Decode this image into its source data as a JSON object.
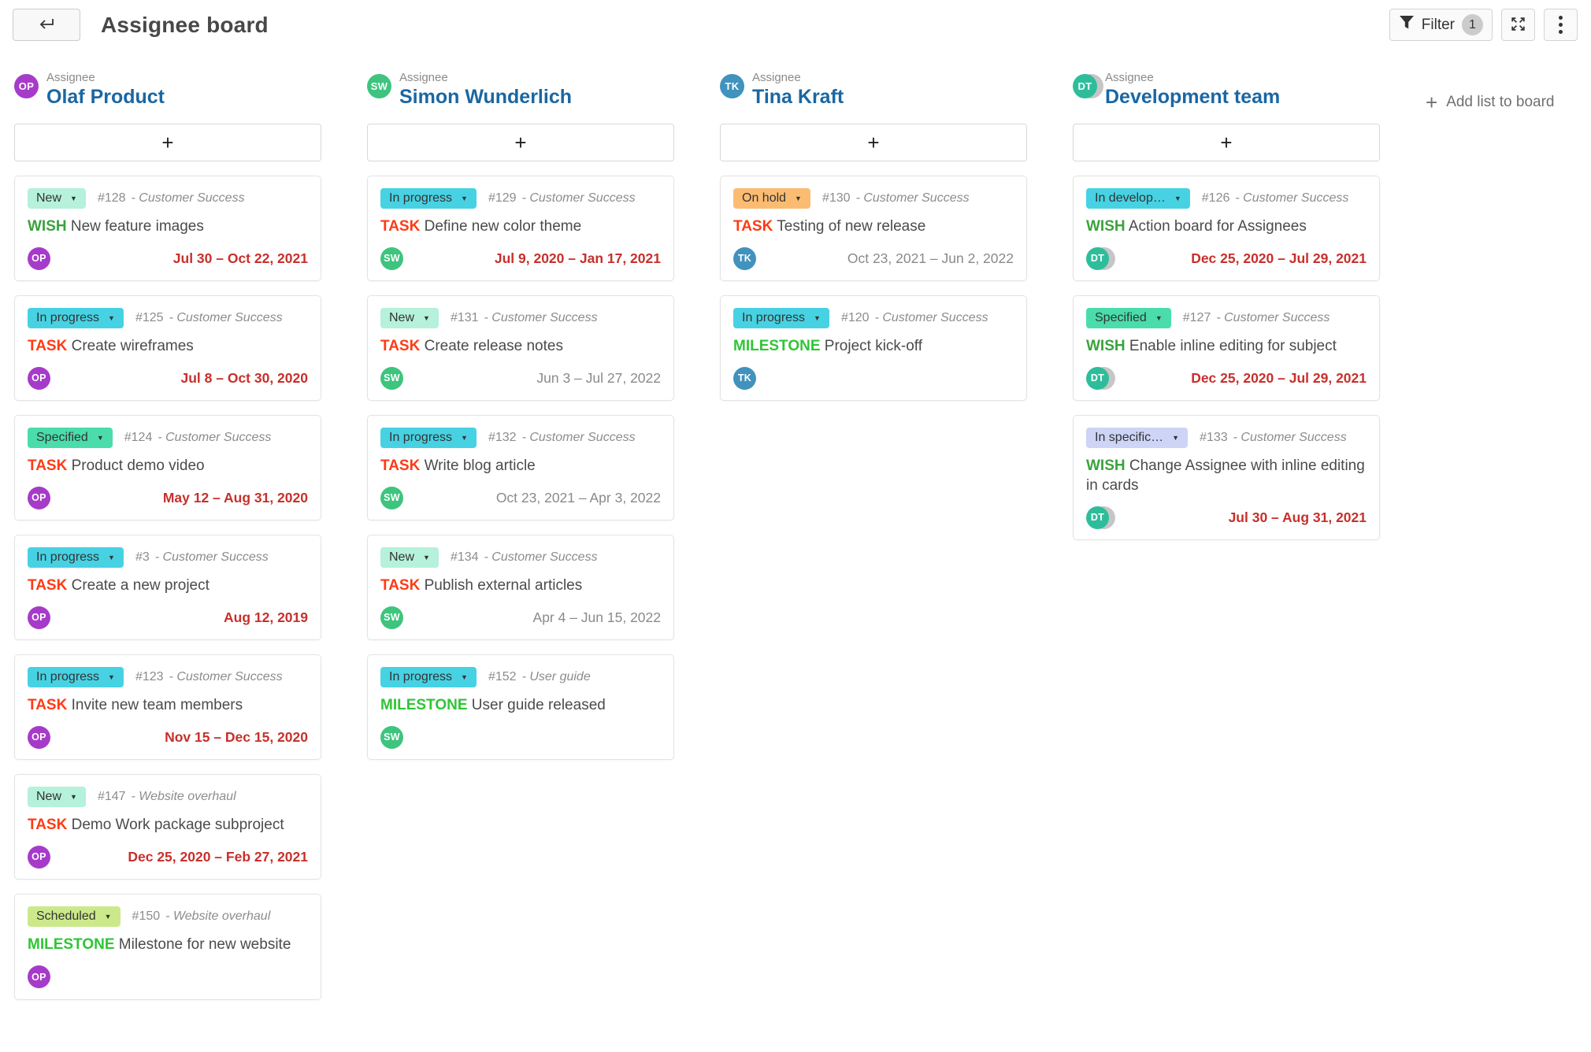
{
  "header": {
    "title": "Assignee board",
    "filter_label": "Filter",
    "filter_count": "1"
  },
  "board": {
    "assignee_label": "Assignee",
    "add_card_symbol": "+",
    "add_list_label": "Add list to board",
    "type_colors": {
      "TASK": "#fe3b14",
      "WISH": "#3aa33c",
      "MILESTONE": "#2fc535"
    },
    "date_colors": {
      "overdue": "#c7302b",
      "normal": "#8a8a8a"
    },
    "columns": [
      {
        "assignee": "Olaf Product",
        "avatar": {
          "initials": "OP",
          "color": "#a63bc9",
          "group": false
        },
        "cards": [
          {
            "status": "New",
            "status_color": "#b5f1db",
            "id": "#128",
            "project": "Customer Success",
            "type": "WISH",
            "title": "New feature images",
            "dates": "Jul 30 – Oct 22, 2021",
            "overdue": true
          },
          {
            "status": "In progress",
            "status_color": "#47d2e3",
            "id": "#125",
            "project": "Customer Success",
            "type": "TASK",
            "title": "Create wireframes",
            "dates": "Jul 8 – Oct 30, 2020",
            "overdue": true
          },
          {
            "status": "Specified",
            "status_color": "#4addab",
            "id": "#124",
            "project": "Customer Success",
            "type": "TASK",
            "title": "Product demo video",
            "dates": "May 12 – Aug 31, 2020",
            "overdue": true
          },
          {
            "status": "In progress",
            "status_color": "#47d2e3",
            "id": "#3",
            "project": "Customer Success",
            "type": "TASK",
            "title": "Create a new project",
            "dates": "Aug 12, 2019",
            "overdue": true
          },
          {
            "status": "In progress",
            "status_color": "#47d2e3",
            "id": "#123",
            "project": "Customer Success",
            "type": "TASK",
            "title": "Invite new team members",
            "dates": "Nov 15 – Dec 15, 2020",
            "overdue": true
          },
          {
            "status": "New",
            "status_color": "#b5f1db",
            "id": "#147",
            "project": "Website overhaul",
            "type": "TASK",
            "title": "Demo Work package subproject",
            "dates": "Dec 25, 2020 – Feb 27, 2021",
            "overdue": true
          },
          {
            "status": "Scheduled",
            "status_color": "#cbe98b",
            "id": "#150",
            "project": "Website overhaul",
            "type": "MILESTONE",
            "title": "Milestone for new website",
            "dates": "",
            "overdue": false
          }
        ]
      },
      {
        "assignee": "Simon Wunderlich",
        "avatar": {
          "initials": "SW",
          "color": "#3ec47e",
          "group": false
        },
        "cards": [
          {
            "status": "In progress",
            "status_color": "#47d2e3",
            "id": "#129",
            "project": "Customer Success",
            "type": "TASK",
            "title": "Define new color theme",
            "dates": "Jul 9, 2020 – Jan 17, 2021",
            "overdue": true
          },
          {
            "status": "New",
            "status_color": "#b5f1db",
            "id": "#131",
            "project": "Customer Success",
            "type": "TASK",
            "title": "Create release notes",
            "dates": "Jun 3 – Jul 27, 2022",
            "overdue": false
          },
          {
            "status": "In progress",
            "status_color": "#47d2e3",
            "id": "#132",
            "project": "Customer Success",
            "type": "TASK",
            "title": "Write blog article",
            "dates": "Oct 23, 2021 – Apr 3, 2022",
            "overdue": false
          },
          {
            "status": "New",
            "status_color": "#b5f1db",
            "id": "#134",
            "project": "Customer Success",
            "type": "TASK",
            "title": "Publish external articles",
            "dates": "Apr 4 – Jun 15, 2022",
            "overdue": false
          },
          {
            "status": "In progress",
            "status_color": "#47d2e3",
            "id": "#152",
            "project": "User guide",
            "type": "MILESTONE",
            "title": "User guide released",
            "dates": "",
            "overdue": false
          }
        ]
      },
      {
        "assignee": "Tina Kraft",
        "avatar": {
          "initials": "TK",
          "color": "#4192be",
          "group": false
        },
        "cards": [
          {
            "status": "On hold",
            "status_color": "#fbbc72",
            "id": "#130",
            "project": "Customer Success",
            "type": "TASK",
            "title": "Testing of new release",
            "dates": "Oct 23, 2021 – Jun 2, 2022",
            "overdue": false
          },
          {
            "status": "In progress",
            "status_color": "#47d2e3",
            "id": "#120",
            "project": "Customer Success",
            "type": "MILESTONE",
            "title": "Project kick-off",
            "dates": "",
            "overdue": false
          }
        ]
      },
      {
        "assignee": "Development team",
        "avatar": {
          "initials": "DT",
          "color": "#2ebd9b",
          "group": true
        },
        "cards": [
          {
            "status": "In develop…",
            "status_color": "#47d2e3",
            "id": "#126",
            "project": "Customer Success",
            "type": "WISH",
            "title": "Action board for Assignees",
            "dates": "Dec 25, 2020 – Jul 29, 2021",
            "overdue": true
          },
          {
            "status": "Specified",
            "status_color": "#4addab",
            "id": "#127",
            "project": "Customer Success",
            "type": "WISH",
            "title": "Enable inline editing for subject",
            "dates": "Dec 25, 2020 – Jul 29, 2021",
            "overdue": true
          },
          {
            "status": "In specific…",
            "status_color": "#ced4f6",
            "id": "#133",
            "project": "Customer Success",
            "type": "WISH",
            "title": "Change Assignee with inline editing in cards",
            "dates": "Jul 30 – Aug 31, 2021",
            "overdue": true
          }
        ]
      }
    ]
  }
}
